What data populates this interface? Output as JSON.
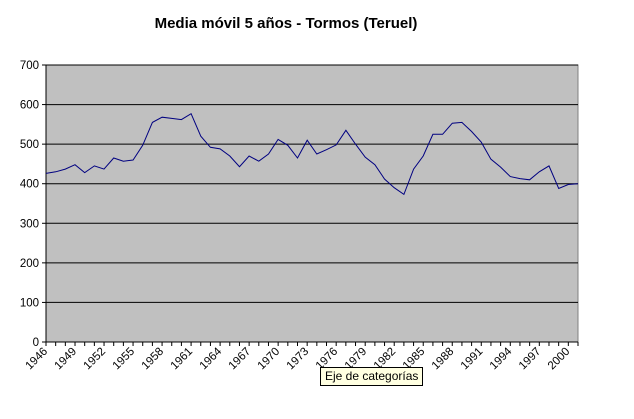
{
  "chart_data": {
    "type": "line",
    "title": "Media móvil 5 años - Tormos (Teruel)",
    "xlabel": "",
    "ylabel": "",
    "ylim": [
      0,
      700
    ],
    "yticks": [
      0,
      100,
      200,
      300,
      400,
      500,
      600,
      700
    ],
    "x_tick_labels": [
      "1946",
      "1949",
      "1952",
      "1955",
      "1958",
      "1961",
      "1964",
      "1967",
      "1970",
      "1973",
      "1976",
      "1979",
      "1982",
      "1985",
      "1988",
      "1991",
      "1994",
      "1997",
      "2000"
    ],
    "grid": true,
    "plot_background": "#c0c0c0",
    "line_color": "#000080",
    "series": [
      {
        "x": [
          1946,
          1947,
          1948,
          1949,
          1950,
          1951,
          1952,
          1953,
          1954,
          1955,
          1956,
          1957,
          1958,
          1959,
          1960,
          1961,
          1962,
          1963,
          1964,
          1965,
          1966,
          1967,
          1968,
          1969,
          1970,
          1971,
          1972,
          1973,
          1974,
          1975,
          1976,
          1977,
          1978,
          1979,
          1980,
          1981,
          1982,
          1983,
          1984,
          1985,
          1986,
          1987,
          1988,
          1989,
          1990,
          1991,
          1992,
          1993,
          1994,
          1995,
          1996,
          1997,
          1998,
          1999,
          2000,
          2001
        ],
        "values": [
          426,
          430,
          437,
          448,
          428,
          445,
          437,
          465,
          457,
          460,
          497,
          555,
          568,
          565,
          562,
          577,
          520,
          492,
          488,
          470,
          443,
          470,
          457,
          475,
          512,
          497,
          465,
          510,
          475,
          486,
          498,
          535,
          500,
          467,
          448,
          412,
          390,
          373,
          437,
          470,
          525,
          525,
          553,
          555,
          532,
          505,
          462,
          442,
          418,
          413,
          410,
          430,
          445,
          388,
          398,
          400
        ]
      }
    ]
  },
  "tooltip": "Eje de categorías"
}
